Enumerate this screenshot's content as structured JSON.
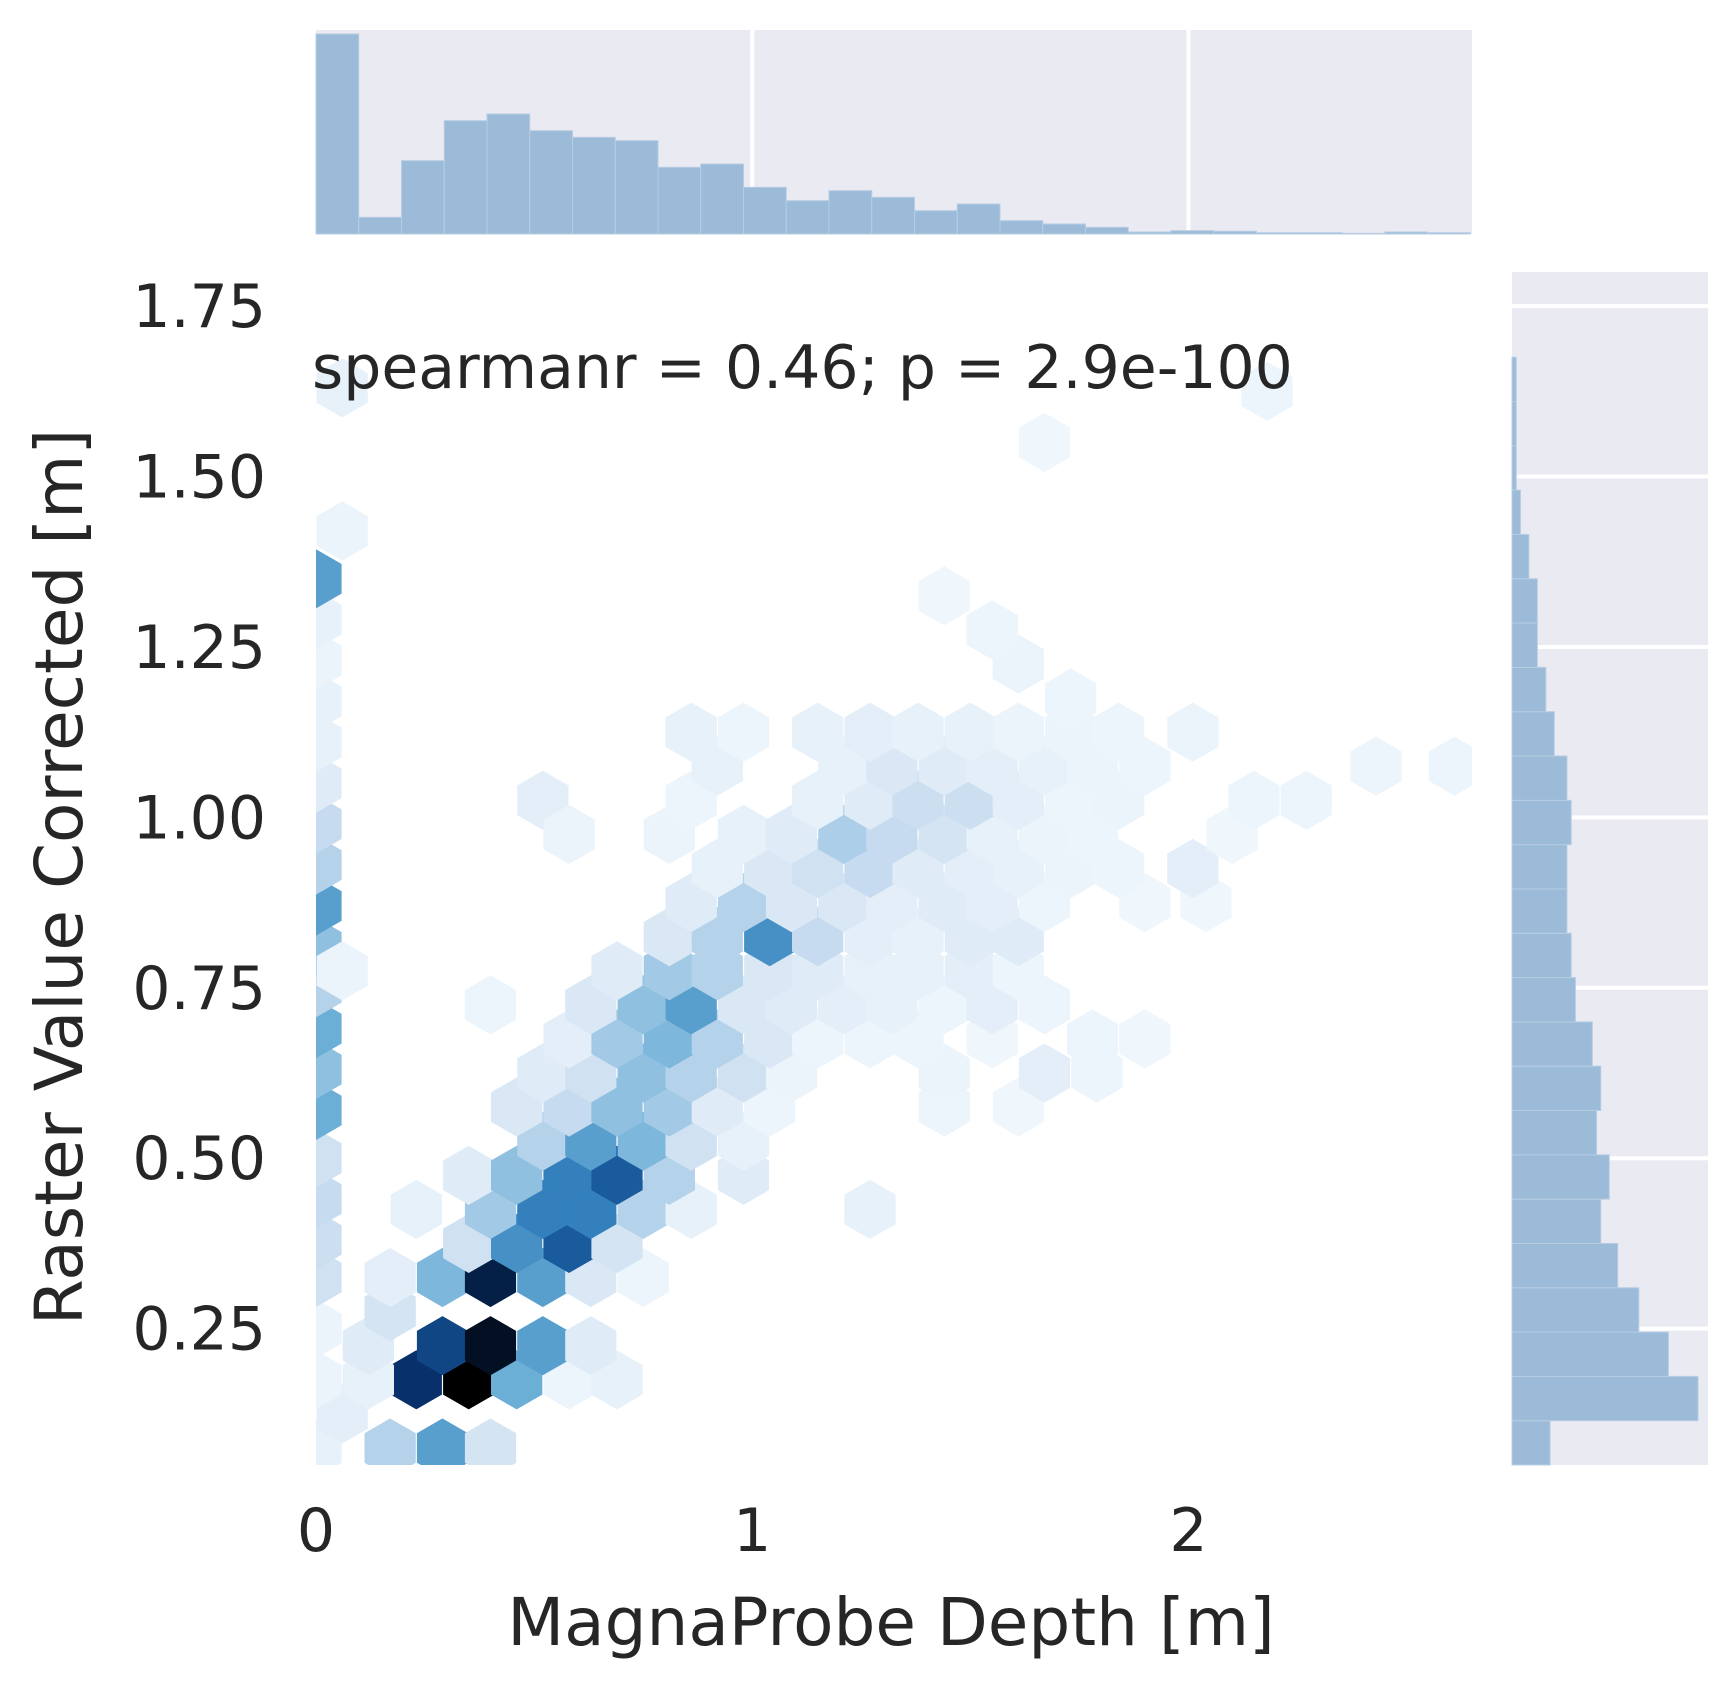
{
  "chart_data": {
    "type": "hexbin",
    "xlabel": "MagnaProbe Depth [m]",
    "ylabel": "Raster Value Corrected [m]",
    "annotation": "spearmanr = 0.46; p = 2.9e-100",
    "xlim": [
      0,
      2.65
    ],
    "ylim": [
      0.05,
      1.8
    ],
    "x_ticks": [
      0,
      1,
      2
    ],
    "x_tick_labels": [
      "0",
      "1",
      "2"
    ],
    "y_ticks": [
      0.25,
      0.5,
      0.75,
      1.0,
      1.25,
      1.5,
      1.75
    ],
    "y_tick_labels": [
      "0.25",
      "0.50",
      "0.75",
      "1.00",
      "1.25",
      "1.50",
      "1.75"
    ],
    "color_scale": "Blues",
    "hexbins": [
      [
        0.0,
        0.075,
        0.08
      ],
      [
        0.17,
        0.075,
        0.3
      ],
      [
        0.29,
        0.075,
        0.55
      ],
      [
        0.4,
        0.075,
        0.18
      ],
      [
        0.06,
        0.125,
        0.1
      ],
      [
        0.23,
        0.175,
        0.85
      ],
      [
        0.35,
        0.175,
        1.0
      ],
      [
        0.46,
        0.175,
        0.5
      ],
      [
        0.58,
        0.175,
        0.05
      ],
      [
        0.69,
        0.175,
        0.08
      ],
      [
        0.0,
        0.175,
        0.06
      ],
      [
        0.12,
        0.175,
        0.08
      ],
      [
        0.0,
        0.25,
        0.06
      ],
      [
        0.12,
        0.225,
        0.12
      ],
      [
        0.17,
        0.275,
        0.18
      ],
      [
        0.29,
        0.225,
        0.8
      ],
      [
        0.4,
        0.225,
        0.95
      ],
      [
        0.52,
        0.225,
        0.55
      ],
      [
        0.63,
        0.225,
        0.12
      ],
      [
        0.0,
        0.325,
        0.2
      ],
      [
        0.17,
        0.325,
        0.1
      ],
      [
        0.29,
        0.325,
        0.45
      ],
      [
        0.4,
        0.325,
        0.9
      ],
      [
        0.52,
        0.325,
        0.55
      ],
      [
        0.63,
        0.325,
        0.15
      ],
      [
        0.75,
        0.325,
        0.05
      ],
      [
        0.0,
        0.38,
        0.22
      ],
      [
        0.35,
        0.375,
        0.2
      ],
      [
        0.46,
        0.375,
        0.6
      ],
      [
        0.58,
        0.375,
        0.75
      ],
      [
        0.69,
        0.375,
        0.18
      ],
      [
        0.0,
        0.44,
        0.25
      ],
      [
        0.23,
        0.425,
        0.08
      ],
      [
        0.4,
        0.425,
        0.35
      ],
      [
        0.52,
        0.425,
        0.65
      ],
      [
        0.63,
        0.425,
        0.65
      ],
      [
        0.75,
        0.425,
        0.3
      ],
      [
        0.86,
        0.425,
        0.08
      ],
      [
        1.27,
        0.425,
        0.08
      ],
      [
        0.0,
        0.5,
        0.2
      ],
      [
        0.35,
        0.475,
        0.12
      ],
      [
        0.46,
        0.475,
        0.4
      ],
      [
        0.58,
        0.475,
        0.65
      ],
      [
        0.69,
        0.475,
        0.75
      ],
      [
        0.81,
        0.475,
        0.3
      ],
      [
        0.98,
        0.475,
        0.12
      ],
      [
        0.0,
        0.57,
        0.5
      ],
      [
        0.52,
        0.525,
        0.3
      ],
      [
        0.63,
        0.525,
        0.55
      ],
      [
        0.75,
        0.525,
        0.45
      ],
      [
        0.86,
        0.525,
        0.2
      ],
      [
        0.98,
        0.525,
        0.08
      ],
      [
        0.0,
        0.63,
        0.4
      ],
      [
        0.46,
        0.575,
        0.15
      ],
      [
        0.58,
        0.575,
        0.25
      ],
      [
        0.69,
        0.575,
        0.4
      ],
      [
        0.81,
        0.575,
        0.35
      ],
      [
        0.92,
        0.575,
        0.12
      ],
      [
        1.04,
        0.575,
        0.05
      ],
      [
        1.44,
        0.575,
        0.05
      ],
      [
        1.61,
        0.575,
        0.04
      ],
      [
        0.0,
        0.69,
        0.5
      ],
      [
        0.52,
        0.625,
        0.12
      ],
      [
        0.63,
        0.625,
        0.2
      ],
      [
        0.75,
        0.625,
        0.4
      ],
      [
        0.86,
        0.625,
        0.3
      ],
      [
        0.98,
        0.625,
        0.2
      ],
      [
        1.09,
        0.625,
        0.06
      ],
      [
        1.44,
        0.625,
        0.06
      ],
      [
        1.67,
        0.625,
        0.1
      ],
      [
        1.79,
        0.625,
        0.05
      ],
      [
        0.0,
        0.75,
        0.3
      ],
      [
        0.58,
        0.675,
        0.1
      ],
      [
        0.69,
        0.675,
        0.35
      ],
      [
        0.81,
        0.675,
        0.45
      ],
      [
        0.92,
        0.675,
        0.3
      ],
      [
        1.04,
        0.675,
        0.15
      ],
      [
        1.15,
        0.675,
        0.05
      ],
      [
        1.27,
        0.675,
        0.05
      ],
      [
        1.38,
        0.675,
        0.05
      ],
      [
        1.55,
        0.675,
        0.04
      ],
      [
        1.78,
        0.675,
        0.05
      ],
      [
        1.9,
        0.675,
        0.04
      ],
      [
        0.0,
        0.81,
        0.4
      ],
      [
        0.06,
        0.775,
        0.06
      ],
      [
        0.4,
        0.725,
        0.05
      ],
      [
        0.63,
        0.725,
        0.15
      ],
      [
        0.75,
        0.725,
        0.4
      ],
      [
        0.86,
        0.725,
        0.55
      ],
      [
        0.98,
        0.725,
        0.15
      ],
      [
        1.09,
        0.725,
        0.12
      ],
      [
        1.21,
        0.725,
        0.1
      ],
      [
        1.32,
        0.725,
        0.08
      ],
      [
        1.44,
        0.725,
        0.05
      ],
      [
        1.55,
        0.725,
        0.1
      ],
      [
        1.67,
        0.725,
        0.05
      ],
      [
        0.0,
        0.87,
        0.55
      ],
      [
        0.69,
        0.775,
        0.12
      ],
      [
        0.81,
        0.775,
        0.35
      ],
      [
        0.92,
        0.775,
        0.3
      ],
      [
        1.04,
        0.775,
        0.15
      ],
      [
        1.15,
        0.775,
        0.12
      ],
      [
        1.27,
        0.775,
        0.08
      ],
      [
        1.38,
        0.775,
        0.08
      ],
      [
        1.5,
        0.775,
        0.1
      ],
      [
        1.61,
        0.775,
        0.05
      ],
      [
        0.0,
        0.93,
        0.3
      ],
      [
        0.81,
        0.825,
        0.15
      ],
      [
        0.92,
        0.825,
        0.3
      ],
      [
        1.04,
        0.825,
        0.6
      ],
      [
        1.15,
        0.825,
        0.25
      ],
      [
        1.27,
        0.825,
        0.1
      ],
      [
        1.38,
        0.825,
        0.08
      ],
      [
        1.5,
        0.825,
        0.12
      ],
      [
        1.61,
        0.825,
        0.12
      ],
      [
        0.0,
        0.99,
        0.25
      ],
      [
        0.86,
        0.875,
        0.12
      ],
      [
        0.98,
        0.875,
        0.3
      ],
      [
        1.09,
        0.875,
        0.15
      ],
      [
        1.21,
        0.875,
        0.15
      ],
      [
        1.32,
        0.875,
        0.1
      ],
      [
        1.44,
        0.875,
        0.12
      ],
      [
        1.55,
        0.875,
        0.1
      ],
      [
        1.67,
        0.875,
        0.05
      ],
      [
        1.9,
        0.875,
        0.04
      ],
      [
        2.04,
        0.875,
        0.04
      ],
      [
        0.0,
        1.05,
        0.12
      ],
      [
        0.92,
        0.925,
        0.08
      ],
      [
        1.04,
        0.925,
        0.15
      ],
      [
        1.15,
        0.925,
        0.2
      ],
      [
        1.27,
        0.925,
        0.25
      ],
      [
        1.38,
        0.925,
        0.12
      ],
      [
        1.5,
        0.925,
        0.1
      ],
      [
        1.61,
        0.925,
        0.08
      ],
      [
        1.73,
        0.925,
        0.06
      ],
      [
        1.84,
        0.925,
        0.05
      ],
      [
        2.01,
        0.925,
        0.1
      ],
      [
        0.0,
        1.11,
        0.08
      ],
      [
        0.81,
        0.975,
        0.06
      ],
      [
        0.98,
        0.975,
        0.08
      ],
      [
        1.09,
        0.975,
        0.12
      ],
      [
        1.21,
        0.975,
        0.32
      ],
      [
        1.32,
        0.975,
        0.25
      ],
      [
        1.44,
        0.975,
        0.18
      ],
      [
        1.55,
        0.975,
        0.08
      ],
      [
        1.67,
        0.975,
        0.06
      ],
      [
        1.78,
        0.975,
        0.05
      ],
      [
        2.1,
        0.975,
        0.04
      ],
      [
        0.0,
        1.17,
        0.08
      ],
      [
        0.52,
        1.025,
        0.1
      ],
      [
        0.58,
        0.975,
        0.06
      ],
      [
        0.86,
        1.025,
        0.05
      ],
      [
        1.15,
        1.025,
        0.08
      ],
      [
        1.27,
        1.025,
        0.12
      ],
      [
        1.38,
        1.025,
        0.22
      ],
      [
        1.5,
        1.025,
        0.22
      ],
      [
        1.61,
        1.025,
        0.1
      ],
      [
        1.73,
        1.025,
        0.05
      ],
      [
        1.84,
        1.025,
        0.06
      ],
      [
        2.15,
        1.025,
        0.05
      ],
      [
        2.27,
        1.025,
        0.05
      ],
      [
        0.0,
        1.23,
        0.06
      ],
      [
        0.92,
        1.075,
        0.08
      ],
      [
        1.21,
        1.075,
        0.08
      ],
      [
        1.32,
        1.075,
        0.15
      ],
      [
        1.44,
        1.075,
        0.12
      ],
      [
        1.55,
        1.075,
        0.1
      ],
      [
        1.67,
        1.075,
        0.08
      ],
      [
        1.78,
        1.075,
        0.06
      ],
      [
        1.9,
        1.075,
        0.05
      ],
      [
        2.43,
        1.075,
        0.05
      ],
      [
        2.61,
        1.075,
        0.05
      ],
      [
        0.0,
        1.29,
        0.08
      ],
      [
        0.86,
        1.125,
        0.08
      ],
      [
        0.98,
        1.125,
        0.05
      ],
      [
        1.15,
        1.125,
        0.08
      ],
      [
        1.27,
        1.125,
        0.1
      ],
      [
        1.38,
        1.125,
        0.08
      ],
      [
        1.5,
        1.125,
        0.08
      ],
      [
        1.61,
        1.125,
        0.06
      ],
      [
        1.73,
        1.125,
        0.06
      ],
      [
        1.84,
        1.125,
        0.05
      ],
      [
        2.01,
        1.125,
        0.06
      ],
      [
        0.0,
        1.35,
        0.55
      ],
      [
        1.73,
        1.175,
        0.05
      ],
      [
        1.61,
        1.225,
        0.06
      ],
      [
        0.06,
        1.42,
        0.06
      ],
      [
        1.55,
        1.275,
        0.05
      ],
      [
        0.06,
        1.63,
        0.08
      ],
      [
        1.44,
        1.325,
        0.04
      ],
      [
        1.67,
        1.55,
        0.04
      ],
      [
        2.18,
        1.625,
        0.05
      ]
    ],
    "marginal_x": {
      "bin_edges": [
        0.0,
        0.098,
        0.196,
        0.294,
        0.392,
        0.49,
        0.588,
        0.686,
        0.784,
        0.882,
        0.98,
        1.078,
        1.176,
        1.274,
        1.372,
        1.47,
        1.568,
        1.666,
        1.764,
        1.862,
        1.96,
        2.058,
        2.156,
        2.254,
        2.352,
        2.45,
        2.548,
        2.646
      ],
      "counts": [
        300,
        25,
        110,
        170,
        180,
        155,
        145,
        140,
        100,
        105,
        70,
        50,
        65,
        55,
        35,
        45,
        20,
        15,
        10,
        3,
        5,
        4,
        2,
        2,
        1,
        3,
        2
      ]
    },
    "marginal_y": {
      "bin_edges": [
        0.05,
        0.115,
        0.18,
        0.245,
        0.31,
        0.375,
        0.44,
        0.505,
        0.57,
        0.635,
        0.7,
        0.765,
        0.83,
        0.895,
        0.96,
        1.025,
        1.09,
        1.155,
        1.22,
        1.285,
        1.35,
        1.415,
        1.48,
        1.545,
        1.61,
        1.675,
        1.74
      ],
      "counts": [
        9,
        44,
        37,
        30,
        25,
        21,
        23,
        20,
        21,
        19,
        15,
        14,
        13,
        13,
        14,
        13,
        10,
        8,
        6,
        6,
        4,
        2,
        1,
        1,
        1,
        0
      ]
    }
  }
}
